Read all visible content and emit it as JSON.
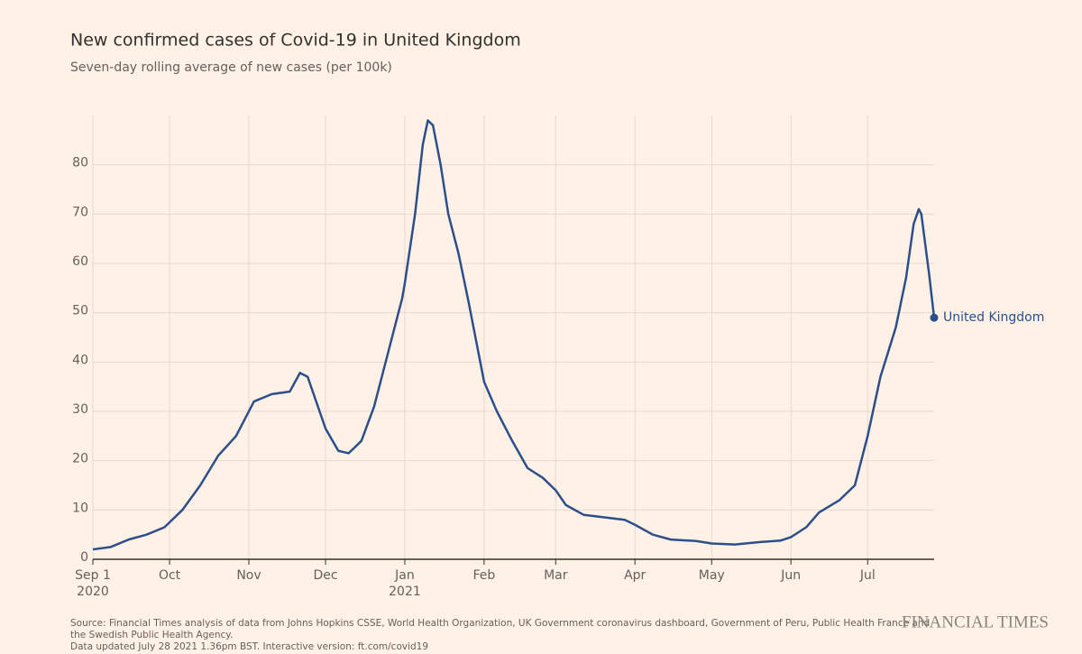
{
  "chart_data": {
    "type": "line",
    "title": "New confirmed cases of Covid-19 in United Kingdom",
    "subtitle": "Seven-day rolling average of new cases (per 100k)",
    "x": [
      "2020-09-01",
      "2020-09-08",
      "2020-09-15",
      "2020-09-22",
      "2020-09-29",
      "2020-10-06",
      "2020-10-13",
      "2020-10-20",
      "2020-10-27",
      "2020-11-03",
      "2020-11-10",
      "2020-11-17",
      "2020-11-21",
      "2020-11-24",
      "2020-12-01",
      "2020-12-06",
      "2020-12-10",
      "2020-12-15",
      "2020-12-20",
      "2020-12-26",
      "2020-12-31",
      "2021-01-01",
      "2021-01-05",
      "2021-01-08",
      "2021-01-10",
      "2021-01-12",
      "2021-01-15",
      "2021-01-18",
      "2021-01-22",
      "2021-01-26",
      "2021-02-01",
      "2021-02-06",
      "2021-02-12",
      "2021-02-18",
      "2021-02-24",
      "2021-03-01",
      "2021-03-05",
      "2021-03-12",
      "2021-03-20",
      "2021-03-28",
      "2021-04-01",
      "2021-04-08",
      "2021-04-15",
      "2021-04-25",
      "2021-05-01",
      "2021-05-10",
      "2021-05-20",
      "2021-05-28",
      "2021-06-01",
      "2021-06-07",
      "2021-06-12",
      "2021-06-20",
      "2021-06-26",
      "2021-07-01",
      "2021-07-06",
      "2021-07-12",
      "2021-07-16",
      "2021-07-19",
      "2021-07-21",
      "2021-07-22",
      "2021-07-25",
      "2021-07-27"
    ],
    "series": [
      {
        "name": "United Kingdom",
        "color": "#2c4f8c",
        "values": [
          2,
          2.5,
          4,
          5,
          6.5,
          10,
          15,
          21,
          25,
          32,
          33.5,
          34,
          37.8,
          37,
          26.5,
          22,
          21.5,
          24,
          31,
          43,
          53,
          56,
          70,
          84,
          89,
          88,
          80,
          70,
          62,
          52,
          36,
          30,
          24,
          18.5,
          16.5,
          14,
          11,
          9,
          8.5,
          8,
          7,
          5,
          4,
          3.7,
          3.2,
          3,
          3.5,
          3.8,
          4.5,
          6.5,
          9.5,
          12,
          15,
          25,
          37,
          47,
          57,
          68,
          71,
          70,
          58,
          49
        ]
      }
    ],
    "ylim": [
      0,
      90
    ],
    "yticks": [
      0,
      10,
      20,
      30,
      40,
      50,
      60,
      70,
      80
    ],
    "xlim": [
      "2020-09-01",
      "2021-07-27"
    ],
    "xticks": [
      {
        "value": "2020-09-01",
        "label": "Sep 1"
      },
      {
        "value": "2020-10-01",
        "label": "Oct"
      },
      {
        "value": "2020-11-01",
        "label": "Nov"
      },
      {
        "value": "2020-12-01",
        "label": "Dec"
      },
      {
        "value": "2021-01-01",
        "label": "Jan"
      },
      {
        "value": "2021-02-01",
        "label": "Feb"
      },
      {
        "value": "2021-03-01",
        "label": "Mar"
      },
      {
        "value": "2021-04-01",
        "label": "Apr"
      },
      {
        "value": "2021-05-01",
        "label": "May"
      },
      {
        "value": "2021-06-01",
        "label": "Jun"
      },
      {
        "value": "2021-07-01",
        "label": "Jul"
      }
    ],
    "year_labels": [
      {
        "value": "2020-09-01",
        "label": "2020"
      },
      {
        "value": "2021-01-01",
        "label": "2021"
      }
    ],
    "grid": true,
    "source": [
      "Source: Financial Times analysis of data from Johns Hopkins CSSE, World Health Organization, UK Government coronavirus dashboard, Government of Peru, Public Health France and",
      "the Swedish Public Health Agency.",
      "Data updated July 28 2021 1.36pm BST. Interactive version: ft.com/covid19"
    ],
    "logo": "FINANCIAL TIMES"
  }
}
